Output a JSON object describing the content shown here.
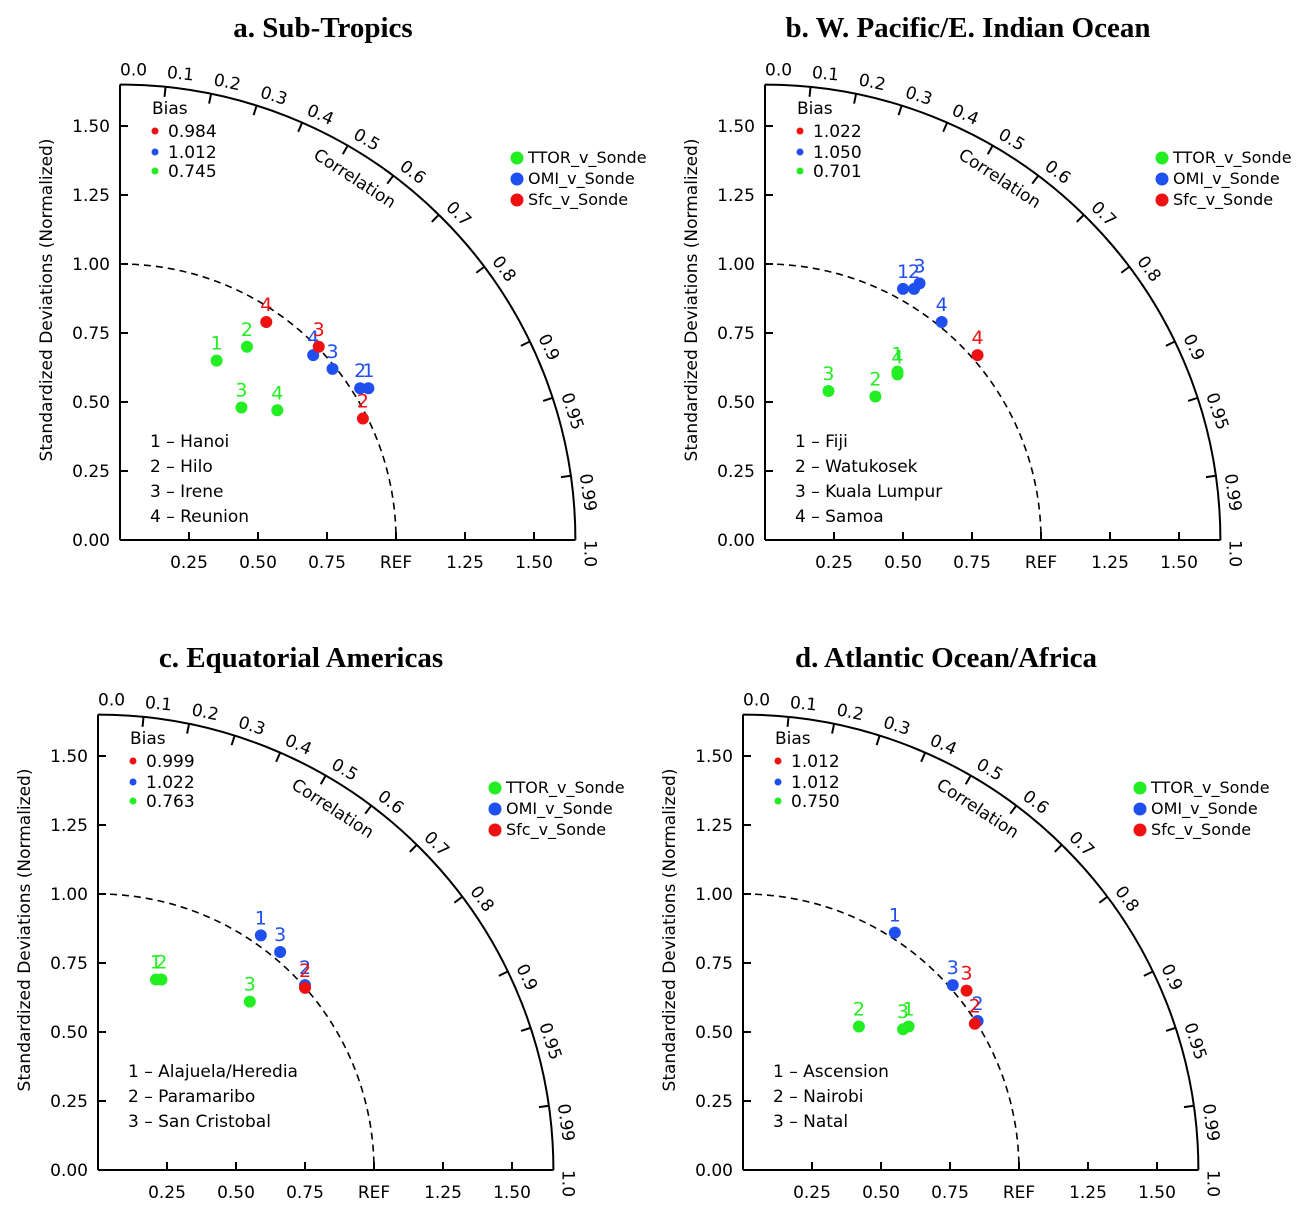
{
  "colors": {
    "TTOR": "#22ee22",
    "OMI": "#1f4fee",
    "Sfc": "#ee1111"
  },
  "common": {
    "ylabel": "Standardized Deviations (Normalized)",
    "correlation_label": "Correlation",
    "bias_title": "Bias",
    "ref_label": "REF",
    "std_ticks": [
      "0.25",
      "0.50",
      "0.75",
      "REF",
      "1.25",
      "1.50"
    ],
    "y_ticks": [
      "0.00",
      "0.25",
      "0.50",
      "0.75",
      "1.00",
      "1.25",
      "1.50"
    ],
    "corr_ticks": [
      "0.0",
      "0.1",
      "0.2",
      "0.3",
      "0.4",
      "0.5",
      "0.6",
      "0.7",
      "0.8",
      "0.9",
      "0.95",
      "0.99",
      "1.0"
    ],
    "legend": [
      "TTOR_v_Sonde",
      "OMI_v_Sonde",
      "Sfc_v_Sonde"
    ]
  },
  "chart_data": [
    {
      "type": "scatter",
      "title": "a. Sub-Tropics",
      "bias": {
        "Sfc": "0.984",
        "OMI": "1.012",
        "TTOR": "0.745"
      },
      "stations": [
        "1 – Hanoi",
        "2 – Hilo",
        "3 – Irene",
        "4 – Reunion"
      ],
      "series": [
        {
          "name": "TTOR_v_Sonde",
          "key": "TTOR",
          "points": [
            {
              "label": "1",
              "x": 0.35,
              "y": 0.65
            },
            {
              "label": "2",
              "x": 0.46,
              "y": 0.7
            },
            {
              "label": "3",
              "x": 0.44,
              "y": 0.48
            },
            {
              "label": "4",
              "x": 0.57,
              "y": 0.47
            }
          ]
        },
        {
          "name": "OMI_v_Sonde",
          "key": "OMI",
          "points": [
            {
              "label": "1",
              "x": 0.9,
              "y": 0.55
            },
            {
              "label": "2",
              "x": 0.87,
              "y": 0.55
            },
            {
              "label": "3",
              "x": 0.77,
              "y": 0.62
            },
            {
              "label": "4",
              "x": 0.7,
              "y": 0.67
            }
          ]
        },
        {
          "name": "Sfc_v_Sonde",
          "key": "Sfc",
          "points": [
            {
              "label": "2",
              "x": 0.88,
              "y": 0.44
            },
            {
              "label": "3",
              "x": 0.72,
              "y": 0.7
            },
            {
              "label": "4",
              "x": 0.53,
              "y": 0.79
            }
          ]
        }
      ]
    },
    {
      "type": "scatter",
      "title": "b. W. Pacific/E. Indian Ocean",
      "bias": {
        "Sfc": "1.022",
        "OMI": "1.050",
        "TTOR": "0.701"
      },
      "stations": [
        "1 – Fiji",
        "2 – Watukosek",
        "3 – Kuala Lumpur",
        "4 – Samoa"
      ],
      "series": [
        {
          "name": "TTOR_v_Sonde",
          "key": "TTOR",
          "points": [
            {
              "label": "1",
              "x": 0.48,
              "y": 0.61
            },
            {
              "label": "2",
              "x": 0.4,
              "y": 0.52
            },
            {
              "label": "3",
              "x": 0.23,
              "y": 0.54
            },
            {
              "label": "4",
              "x": 0.48,
              "y": 0.6
            }
          ]
        },
        {
          "name": "OMI_v_Sonde",
          "key": "OMI",
          "points": [
            {
              "label": "1",
              "x": 0.5,
              "y": 0.91
            },
            {
              "label": "2",
              "x": 0.54,
              "y": 0.91
            },
            {
              "label": "3",
              "x": 0.56,
              "y": 0.93
            },
            {
              "label": "4",
              "x": 0.64,
              "y": 0.79
            }
          ]
        },
        {
          "name": "Sfc_v_Sonde",
          "key": "Sfc",
          "points": [
            {
              "label": "4",
              "x": 0.77,
              "y": 0.67
            }
          ]
        }
      ]
    },
    {
      "type": "scatter",
      "title": "c. Equatorial Americas",
      "bias": {
        "Sfc": "0.999",
        "OMI": "1.022",
        "TTOR": "0.763"
      },
      "stations": [
        "1 – Alajuela/Heredia",
        "2 – Paramaribo",
        "3 – San Cristobal"
      ],
      "series": [
        {
          "name": "TTOR_v_Sonde",
          "key": "TTOR",
          "points": [
            {
              "label": "1",
              "x": 0.21,
              "y": 0.69
            },
            {
              "label": "2",
              "x": 0.23,
              "y": 0.69
            },
            {
              "label": "3",
              "x": 0.55,
              "y": 0.61
            }
          ]
        },
        {
          "name": "OMI_v_Sonde",
          "key": "OMI",
          "points": [
            {
              "label": "1",
              "x": 0.59,
              "y": 0.85
            },
            {
              "label": "2",
              "x": 0.75,
              "y": 0.67
            },
            {
              "label": "3",
              "x": 0.66,
              "y": 0.79
            }
          ]
        },
        {
          "name": "Sfc_v_Sonde",
          "key": "Sfc",
          "points": [
            {
              "label": "2",
              "x": 0.75,
              "y": 0.66
            }
          ]
        }
      ]
    },
    {
      "type": "scatter",
      "title": "d. Atlantic Ocean/Africa",
      "bias": {
        "Sfc": "1.012",
        "OMI": "1.012",
        "TTOR": "0.750"
      },
      "stations": [
        "1 – Ascension",
        "2 – Nairobi",
        "3 – Natal"
      ],
      "series": [
        {
          "name": "TTOR_v_Sonde",
          "key": "TTOR",
          "points": [
            {
              "label": "1",
              "x": 0.6,
              "y": 0.52
            },
            {
              "label": "2",
              "x": 0.42,
              "y": 0.52
            },
            {
              "label": "3",
              "x": 0.58,
              "y": 0.51
            }
          ]
        },
        {
          "name": "OMI_v_Sonde",
          "key": "OMI",
          "points": [
            {
              "label": "1",
              "x": 0.55,
              "y": 0.86
            },
            {
              "label": "2",
              "x": 0.85,
              "y": 0.54
            },
            {
              "label": "3",
              "x": 0.76,
              "y": 0.67
            }
          ]
        },
        {
          "name": "Sfc_v_Sonde",
          "key": "Sfc",
          "points": [
            {
              "label": "2",
              "x": 0.84,
              "y": 0.53
            },
            {
              "label": "3",
              "x": 0.81,
              "y": 0.65
            }
          ]
        }
      ]
    }
  ]
}
